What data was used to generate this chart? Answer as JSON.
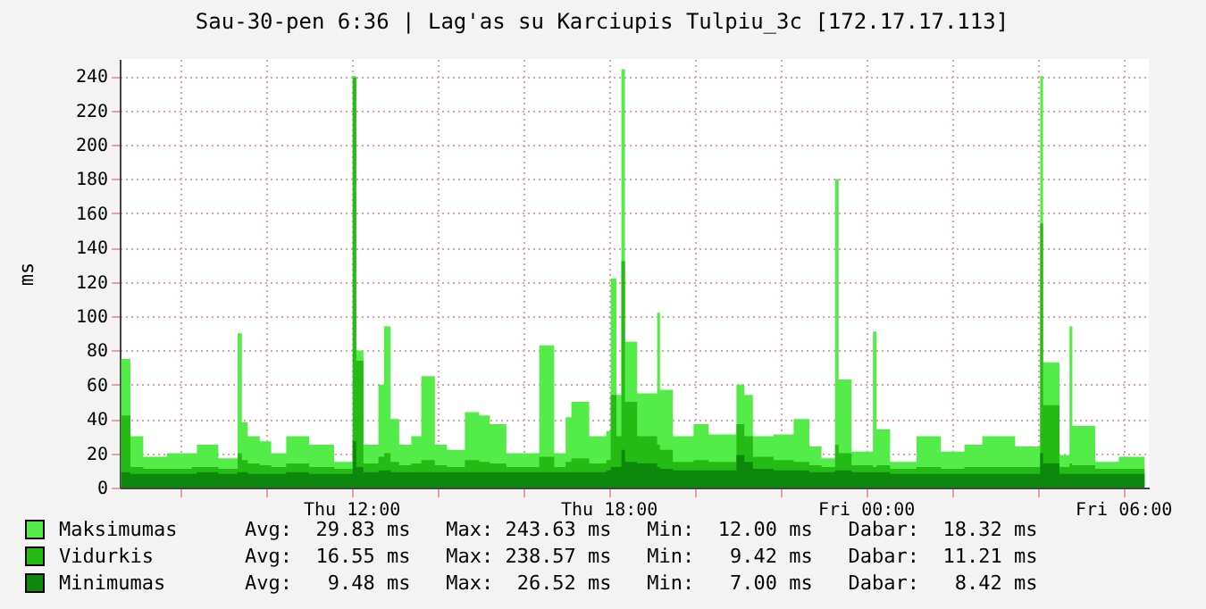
{
  "chart_data": {
    "type": "area",
    "title": "Sau-30-pen 6:36 | Lag'as su Karciupis Tulpiu_3c [172.17.17.113]",
    "ylabel": "ms",
    "x": [
      "--01-29T06:38",
      "--01-29T06:51",
      "--01-29T07:09",
      "--01-29T07:42",
      "--01-29T08:17",
      "--01-29T08:24",
      "--01-29T08:54",
      "--01-29T09:21",
      "--01-29T09:27",
      "--01-29T09:35",
      "--01-29T09:52",
      "--01-29T10:08",
      "--01-29T10:29",
      "--01-29T11:01",
      "--01-29T11:36",
      "--01-29T12:02",
      "--01-29T12:07",
      "--01-29T12:17",
      "--01-29T12:38",
      "--01-29T12:46",
      "--01-29T12:55",
      "--01-29T13:07",
      "--01-29T13:24",
      "--01-29T13:38",
      "--01-29T13:57",
      "--01-29T14:14",
      "--01-29T14:39",
      "--01-29T14:59",
      "--01-29T15:14",
      "--01-29T15:37",
      "--01-29T16:23",
      "--01-29T16:44",
      "--01-29T17:00",
      "--01-29T17:08",
      "--01-29T17:33",
      "--01-29T17:57",
      "--01-29T18:03",
      "--01-29T18:11",
      "--01-29T18:18",
      "--01-29T18:23",
      "--01-29T18:40",
      "--01-29T19:08",
      "--01-29T19:12",
      "--01-29T19:30",
      "--01-29T19:59",
      "--01-29T20:20",
      "--01-29T20:59",
      "--01-29T21:10",
      "--01-29T21:22",
      "--01-29T21:51",
      "--01-29T22:19",
      "--01-29T22:41",
      "--01-29T22:58",
      "--01-29T23:17",
      "--01-29T23:22",
      "--01-29T23:40",
      "--01-30T00:10",
      "--01-30T00:15",
      "--01-30T00:34",
      "--01-30T01:11",
      "--01-30T01:45",
      "--01-30T02:18",
      "--01-30T02:43",
      "--01-30T03:29",
      "--01-30T04:04",
      "--01-30T04:08",
      "--01-30T04:31",
      "--01-30T04:45",
      "--01-30T04:49",
      "--01-30T05:21",
      "--01-30T05:54",
      "--01-30T06:30"
    ],
    "series": [
      {
        "name": "Maksimumas",
        "color": "#54ec48",
        "values": [
          75,
          30,
          18,
          20,
          20,
          25,
          17,
          90,
          38,
          30,
          27,
          20,
          30,
          25,
          15,
          240,
          80,
          25,
          60,
          94,
          40,
          25,
          30,
          65,
          25,
          22,
          44,
          42,
          37,
          20,
          83,
          20,
          41,
          50,
          30,
          33,
          122,
          54,
          244,
          85,
          55,
          102,
          57,
          30,
          37,
          31,
          60,
          54,
          30,
          31,
          40,
          24,
          17,
          180,
          63,
          21,
          91,
          34,
          15,
          30,
          21,
          25,
          30,
          24,
          240,
          73,
          19,
          94,
          36,
          15,
          18,
          24
        ]
      },
      {
        "name": "Vidurkis",
        "color": "#24bc14",
        "values": [
          42,
          12,
          11,
          11,
          12,
          12,
          11,
          20,
          16,
          14,
          13,
          12,
          14,
          12,
          11,
          239,
          74,
          14,
          18,
          20,
          15,
          13,
          14,
          16,
          13,
          12,
          16,
          15,
          14,
          12,
          18,
          12,
          15,
          17,
          14,
          16,
          54,
          30,
          132,
          50,
          30,
          25,
          22,
          15,
          16,
          15,
          37,
          30,
          18,
          16,
          15,
          13,
          12,
          25,
          20,
          13,
          12,
          13,
          11,
          12,
          11,
          12,
          12,
          12,
          154,
          48,
          12,
          14,
          13,
          11,
          11,
          11
        ]
      },
      {
        "name": "Minimumas",
        "color": "#0c880c",
        "values": [
          9,
          8,
          8,
          8,
          8,
          9,
          8,
          9,
          9,
          8,
          8,
          8,
          9,
          8,
          8,
          27,
          12,
          9,
          10,
          10,
          9,
          9,
          9,
          9,
          9,
          9,
          9,
          9,
          9,
          9,
          9,
          9,
          9,
          9,
          9,
          10,
          12,
          12,
          22,
          15,
          14,
          12,
          11,
          10,
          10,
          10,
          19,
          15,
          11,
          10,
          10,
          9,
          9,
          10,
          10,
          9,
          9,
          9,
          8,
          8,
          8,
          8,
          8,
          8,
          20,
          14,
          8,
          8,
          8,
          8,
          8,
          8
        ]
      }
    ],
    "ylim": [
      0,
      250
    ],
    "yticks": [
      0,
      20,
      40,
      60,
      80,
      100,
      120,
      140,
      160,
      180,
      200,
      220,
      240
    ],
    "xlim": [
      "--01-29T06:36",
      "--01-30T06:36"
    ],
    "xticks": [
      {
        "value": "--01-29T08:00",
        "label": null
      },
      {
        "value": "--01-29T10:00",
        "label": null
      },
      {
        "value": "--01-29T12:00",
        "label": "Thu 12:00"
      },
      {
        "value": "--01-29T14:00",
        "label": null
      },
      {
        "value": "--01-29T16:00",
        "label": null
      },
      {
        "value": "--01-29T18:00",
        "label": "Thu 18:00"
      },
      {
        "value": "--01-29T20:00",
        "label": null
      },
      {
        "value": "--01-29T22:00",
        "label": null
      },
      {
        "value": "--01-30T00:00",
        "label": "Fri 00:00"
      },
      {
        "value": "--01-30T02:00",
        "label": null
      },
      {
        "value": "--01-30T04:00",
        "label": null
      },
      {
        "value": "--01-30T06:00",
        "label": "Fri 06:00"
      }
    ],
    "grid": true,
    "legend": "bottom",
    "annotations": [
      "Avg:  29.83 ms   Max: 243.63 ms   Min:  12.00 ms   Dabar:  18.32 ms",
      "Avg:  16.55 ms   Max: 238.57 ms   Min:   9.42 ms   Dabar:  11.21 ms",
      "Avg:   9.48 ms   Max:  26.52 ms   Min:   7.00 ms   Dabar:   8.42 ms"
    ]
  }
}
